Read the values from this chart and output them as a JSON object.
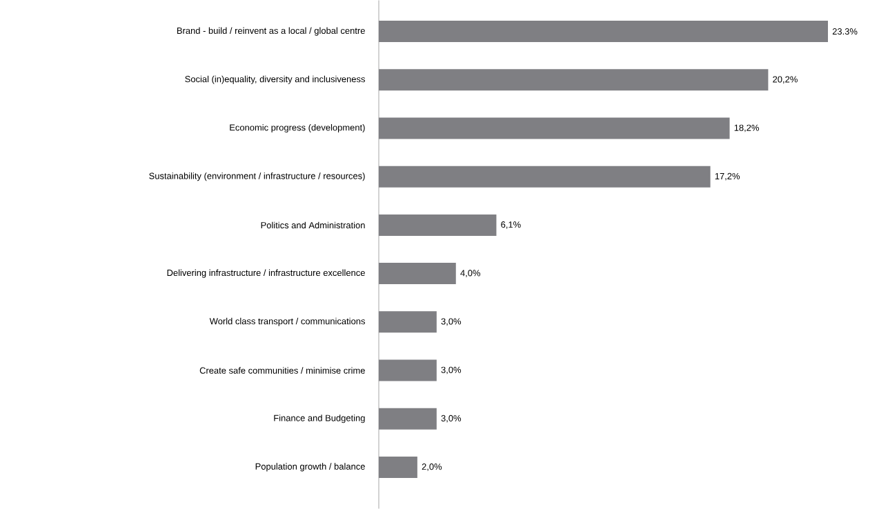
{
  "chart_data": {
    "type": "bar",
    "orientation": "horizontal",
    "color": "#7f7f83",
    "categories": [
      "Brand - build / reinvent as a local / global centre",
      "Social (in)equality, diversity and inclusiveness",
      "Economic progress (development)",
      "Sustainability (environment / infrastructure / resources)",
      "Politics and Administration",
      "Delivering infrastructure / infrastructure excellence",
      "World class transport / communications",
      "Create safe communities / minimise crime",
      "Finance and Budgeting",
      "Population growth / balance"
    ],
    "values": [
      23.3,
      20.2,
      18.2,
      17.2,
      6.1,
      4.0,
      3.0,
      3.0,
      3.0,
      2.0
    ],
    "value_labels": [
      "23.3%",
      "20,2%",
      "18,2%",
      "17,2%",
      "6,1%",
      "4,0%",
      "3,0%",
      "3,0%",
      "3,0%",
      "2,0%"
    ]
  }
}
